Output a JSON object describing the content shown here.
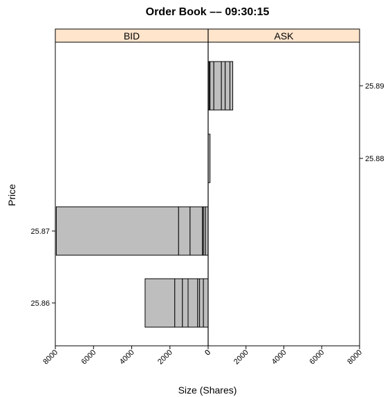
{
  "chart_data": {
    "type": "bar",
    "orientation": "horizontal",
    "title": "Order Book –– 09:30:15",
    "xlabel": "Size (Shares)",
    "ylabel": "Price",
    "panels": [
      {
        "name": "BID",
        "x_direction": "reversed",
        "xlim": [
          0,
          8000
        ],
        "price_ticks": [
          "25.87",
          "25.86"
        ],
        "bars": [
          {
            "price": "25.87",
            "segments": [
              150,
              100,
              50,
              650,
              600,
              6400
            ],
            "total": 7950
          },
          {
            "price": "25.86",
            "segments": [
              250,
              200,
              100,
              500,
              300,
              400,
              1550
            ],
            "total": 3300
          }
        ]
      },
      {
        "name": "ASK",
        "x_direction": "normal",
        "xlim": [
          0,
          8000
        ],
        "price_ticks": [
          "25.89",
          "25.88"
        ],
        "bars": [
          {
            "price": "25.89",
            "segments": [
              50,
              50,
              200,
              400,
              200,
              250,
              150
            ],
            "total": 1300
          },
          {
            "price": "25.88",
            "segments": [
              100
            ],
            "total": 100
          }
        ]
      }
    ],
    "x_ticks_bid": [
      "8000",
      "6000",
      "4000",
      "2000",
      "0"
    ],
    "x_ticks_ask": [
      "0",
      "2000",
      "4000",
      "6000",
      "8000"
    ],
    "strip_color": "#ffe5cc",
    "bar_fill": "#bebebe",
    "bar_stroke": "#000000"
  }
}
